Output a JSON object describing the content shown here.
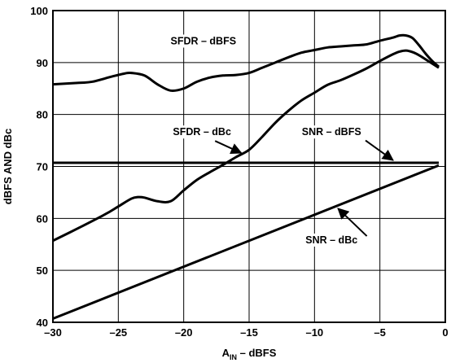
{
  "chart_data": {
    "type": "line",
    "xlabel": {
      "main": "A",
      "sub": "IN",
      "rest": " – dBFS"
    },
    "ylabel": "dBFS AND dBc",
    "xlim": [
      -30,
      0
    ],
    "ylim": [
      40,
      100
    ],
    "xticks": [
      -30,
      -25,
      -20,
      -15,
      -10,
      -5,
      0
    ],
    "yticks": [
      40,
      50,
      60,
      70,
      80,
      90,
      100
    ],
    "xtick_labels": [
      "–30",
      "–25",
      "–20",
      "–15",
      "–10",
      "–5",
      "0"
    ],
    "ytick_labels": [
      "40",
      "50",
      "60",
      "70",
      "80",
      "90",
      "100"
    ],
    "grid": true,
    "series": [
      {
        "name": "SFDR – dBFS",
        "x": [
          -30,
          -28,
          -27,
          -25.5,
          -24.5,
          -24,
          -23,
          -22,
          -21,
          -20,
          -19,
          -18,
          -17,
          -16,
          -15,
          -14,
          -13,
          -12,
          -11,
          -10,
          -9,
          -8,
          -7,
          -6,
          -5,
          -4,
          -3.5,
          -3,
          -2.5,
          -2,
          -1.5,
          -1,
          -0.5
        ],
        "y": [
          85.8,
          86.1,
          86.3,
          87.3,
          87.9,
          88.0,
          87.5,
          85.8,
          84.6,
          85.0,
          86.3,
          87.1,
          87.5,
          87.6,
          88.0,
          89.0,
          90.0,
          91.0,
          91.9,
          92.4,
          92.9,
          93.1,
          93.3,
          93.5,
          94.2,
          94.8,
          95.2,
          95.2,
          94.7,
          93.3,
          91.7,
          90.3,
          89.2
        ]
      },
      {
        "name": "SFDR – dBc",
        "x": [
          -30,
          -28,
          -26,
          -25,
          -24,
          -23.5,
          -23,
          -22,
          -21,
          -20,
          -19,
          -18,
          -17,
          -16,
          -15,
          -14,
          -13,
          -12,
          -11,
          -10,
          -9,
          -8,
          -7,
          -6,
          -5,
          -4,
          -3.5,
          -3,
          -2.5,
          -2,
          -1.5,
          -1,
          -0.5
        ],
        "y": [
          55.7,
          58.2,
          60.8,
          62.3,
          63.8,
          64.1,
          64.0,
          63.3,
          63.3,
          65.4,
          67.4,
          68.9,
          70.3,
          71.8,
          73.2,
          75.7,
          78.4,
          80.7,
          82.7,
          84.2,
          85.7,
          86.6,
          87.7,
          88.9,
          90.3,
          91.6,
          92.1,
          92.3,
          92.0,
          91.4,
          90.6,
          89.8,
          89.0
        ]
      },
      {
        "name": "SNR – dBFS",
        "x": [
          -30,
          -0.5
        ],
        "y": [
          70.7,
          70.7
        ]
      },
      {
        "name": "SNR – dBc",
        "x": [
          -30,
          -0.5
        ],
        "y": [
          40.7,
          70.2
        ]
      }
    ],
    "annotations": [
      {
        "text": "SFDR – dBFS",
        "tx": -18.5,
        "ty": 93.5,
        "ax": -18.2,
        "ay": 92.0,
        "px": -18.2,
        "py": 92.0,
        "arrow": false
      },
      {
        "text": "SFDR – dBc",
        "tx": -18.6,
        "ty": 76.0,
        "ax": -17.6,
        "ay": 74.9,
        "px": -15.6,
        "py": 72.6,
        "arrow": true
      },
      {
        "text": "SNR – dBFS",
        "tx": -8.7,
        "ty": 76.0,
        "ax": -6.1,
        "ay": 75.0,
        "px": -4.0,
        "py": 71.2,
        "arrow": true
      },
      {
        "text": "SNR – dBc",
        "tx": -8.7,
        "ty": 55.2,
        "ax": -6.0,
        "ay": 56.6,
        "px": -8.2,
        "py": 61.9,
        "arrow": true
      }
    ]
  }
}
